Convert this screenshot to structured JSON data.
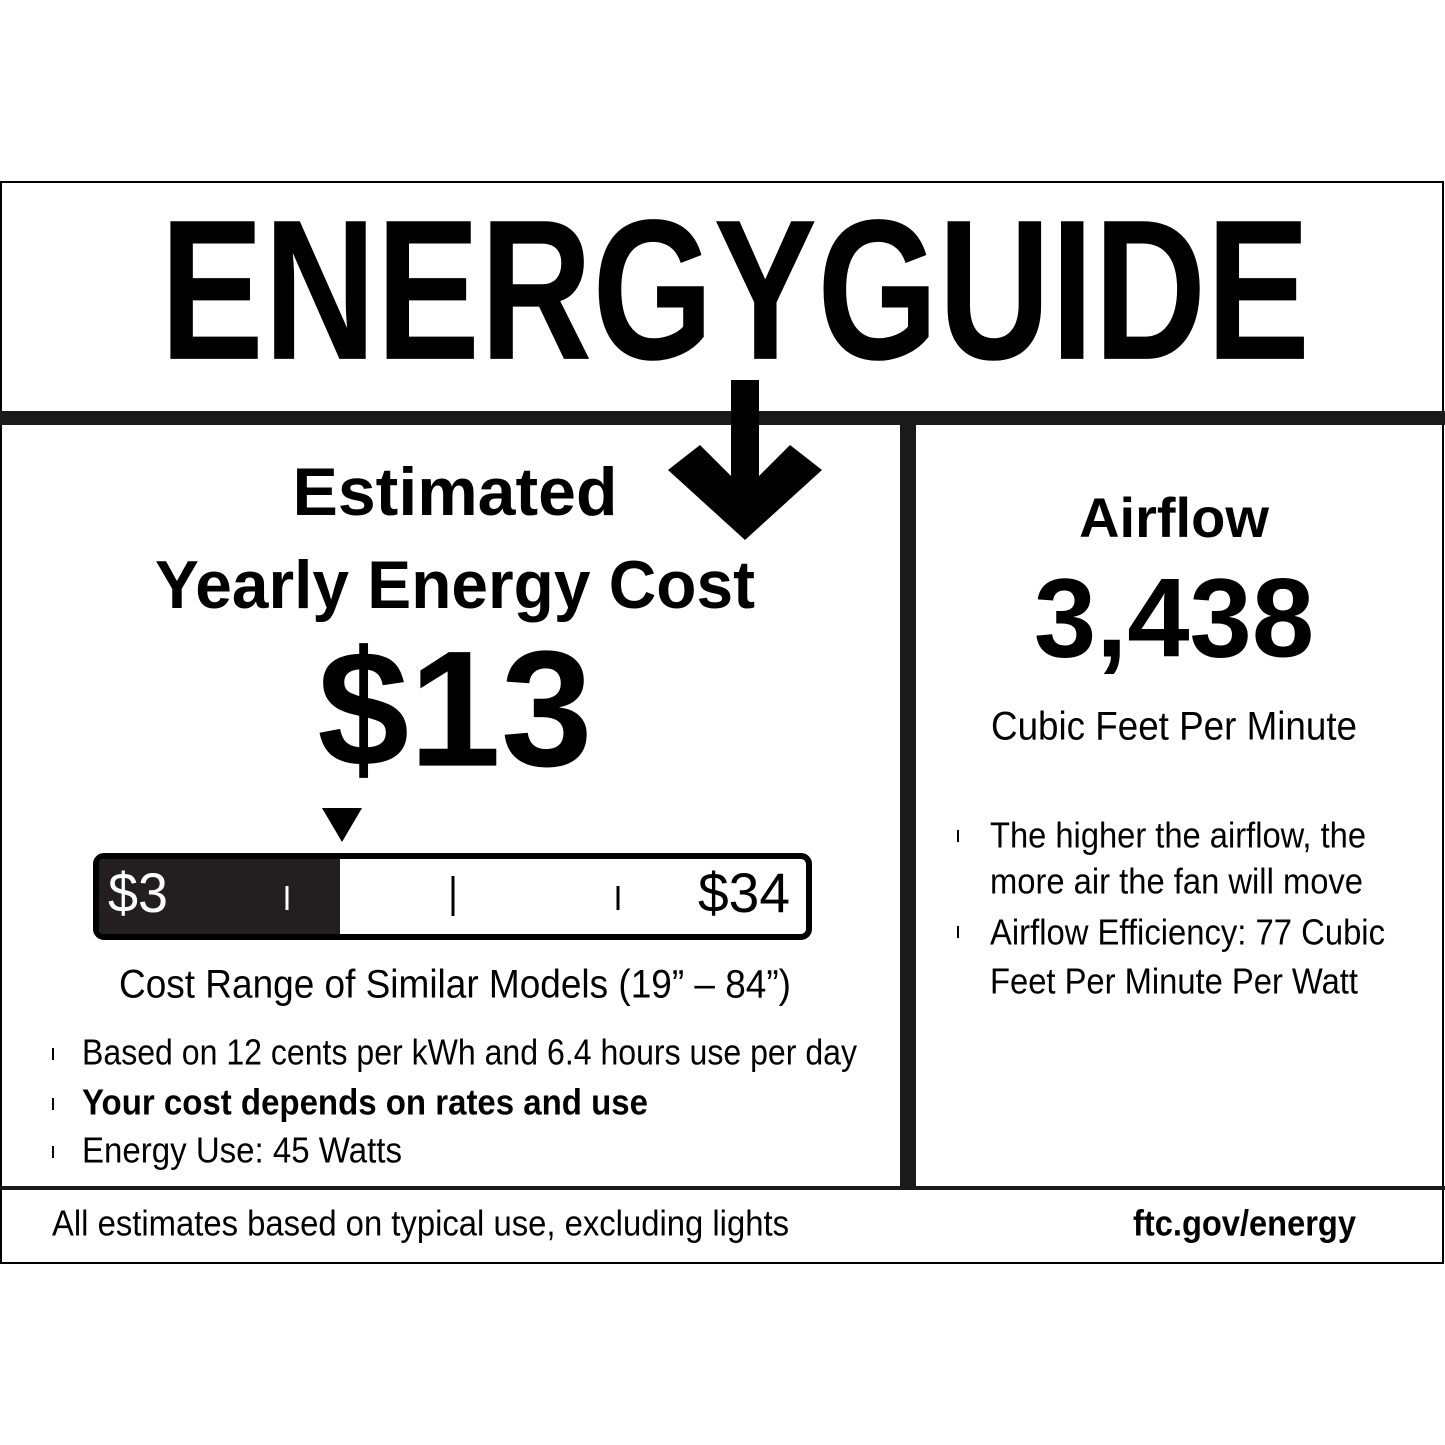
{
  "header": {
    "title": "ENERGYGUIDE"
  },
  "left": {
    "heading": [
      "Estimated",
      "Yearly Energy Cost"
    ],
    "cost": "$13",
    "range": {
      "low": "$3",
      "high": "$34",
      "caption": "Cost Range of Similar Models (19” – 84”)"
    },
    "bullets": [
      "Based on 12 cents per kWh and 6.4 hours use per day",
      "Your cost depends on rates and use",
      "Energy Use: 45 Watts"
    ]
  },
  "right": {
    "heading": "Airflow",
    "value": "3,438",
    "unit": "Cubic Feet Per Minute",
    "bullets": [
      [
        "The higher the airflow, the",
        "more air the fan will move"
      ],
      [
        "Airflow Efficiency: 77 Cubic",
        "Feet Per Minute Per Watt"
      ]
    ]
  },
  "footer": {
    "note": "All estimates based on typical use, excluding lights",
    "link": "ftc.gov/energy"
  }
}
